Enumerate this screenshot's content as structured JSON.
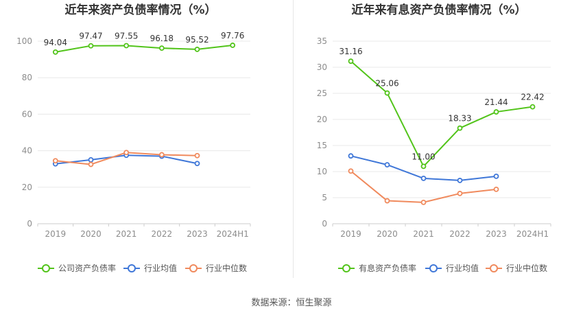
{
  "source_text": "数据来源：恒生聚源",
  "chart_data": [
    {
      "type": "line",
      "title": "近年来资产负债率情况（%）",
      "categories": [
        "2019",
        "2020",
        "2021",
        "2022",
        "2023",
        "2024H1"
      ],
      "ylim": [
        0,
        100
      ],
      "yticks": [
        0,
        20,
        40,
        60,
        80,
        100
      ],
      "grid": true,
      "legend": "bottom",
      "series": [
        {
          "name": "公司资产负债率",
          "color": "#52c41a",
          "values": [
            94.04,
            97.47,
            97.55,
            96.18,
            95.52,
            97.76
          ],
          "labels": [
            "94.04",
            "97.47",
            "97.55",
            "96.18",
            "95.52",
            "97.76"
          ]
        },
        {
          "name": "行业均值",
          "color": "#3f77d8",
          "values": [
            32.8,
            35.0,
            37.5,
            37.0,
            33.0,
            null
          ]
        },
        {
          "name": "行业中位数",
          "color": "#f08a5d",
          "values": [
            34.5,
            32.5,
            39.0,
            37.8,
            37.3,
            null
          ]
        }
      ]
    },
    {
      "type": "line",
      "title": "近年来有息资产负债率情况（%）",
      "categories": [
        "2019",
        "2020",
        "2021",
        "2022",
        "2023",
        "2024H1"
      ],
      "ylim": [
        0,
        35
      ],
      "yticks": [
        0,
        5,
        10,
        15,
        20,
        25,
        30,
        35
      ],
      "grid": true,
      "legend": "bottom",
      "series": [
        {
          "name": "有息资产负债率",
          "color": "#52c41a",
          "values": [
            31.16,
            25.06,
            11.0,
            18.33,
            21.44,
            22.42
          ],
          "labels": [
            "31.16",
            "25.06",
            "11.00",
            "18.33",
            "21.44",
            "22.42"
          ]
        },
        {
          "name": "行业均值",
          "color": "#3f77d8",
          "values": [
            13.0,
            11.3,
            8.7,
            8.3,
            9.1,
            null
          ]
        },
        {
          "name": "行业中位数",
          "color": "#f08a5d",
          "values": [
            10.1,
            4.4,
            4.1,
            5.8,
            6.6,
            null
          ]
        }
      ]
    }
  ]
}
